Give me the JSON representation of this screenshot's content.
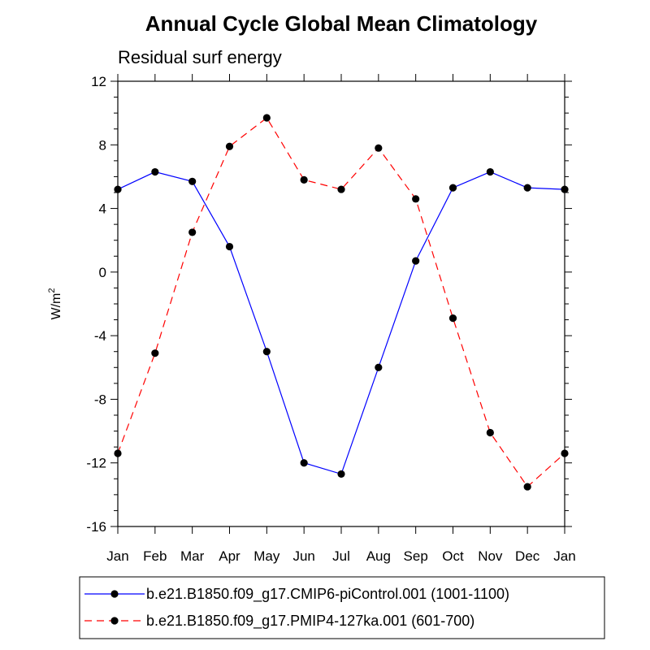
{
  "chart_data": {
    "type": "line",
    "title": "Annual Cycle Global Mean Climatology",
    "subtitle": "Residual surf energy",
    "xlabel": "",
    "ylabel": "W/m",
    "ylabel_sup": "2",
    "categories": [
      "Jan",
      "Feb",
      "Mar",
      "Apr",
      "May",
      "Jun",
      "Jul",
      "Aug",
      "Sep",
      "Oct",
      "Nov",
      "Dec",
      "Jan"
    ],
    "ylim": [
      -16,
      12
    ],
    "yticks": [
      12,
      8,
      4,
      0,
      -4,
      -8,
      -12,
      -16
    ],
    "ytick_labels": [
      "12",
      "8",
      "4",
      "0",
      "-4",
      "-8",
      "-12",
      "-16"
    ],
    "grid": false,
    "legend_position": "bottom",
    "series": [
      {
        "name": "b.e21.B1850.f09_g17.CMIP6-piControl.001 (1001-1100)",
        "color": "#0000ff",
        "line_style": "solid",
        "marker": "filled-circle",
        "values": [
          5.2,
          6.3,
          5.7,
          1.6,
          -5.0,
          -12.0,
          -12.7,
          -6.0,
          0.7,
          5.3,
          6.3,
          5.3,
          5.2
        ]
      },
      {
        "name": "b.e21.B1850.f09_g17.PMIP4-127ka.001 (601-700)",
        "color": "#ff0000",
        "line_style": "dashed",
        "marker": "filled-circle",
        "values": [
          -11.4,
          -5.1,
          2.5,
          7.9,
          9.7,
          5.8,
          5.2,
          7.8,
          4.6,
          -2.9,
          -10.1,
          -13.5,
          -11.4
        ]
      }
    ]
  }
}
